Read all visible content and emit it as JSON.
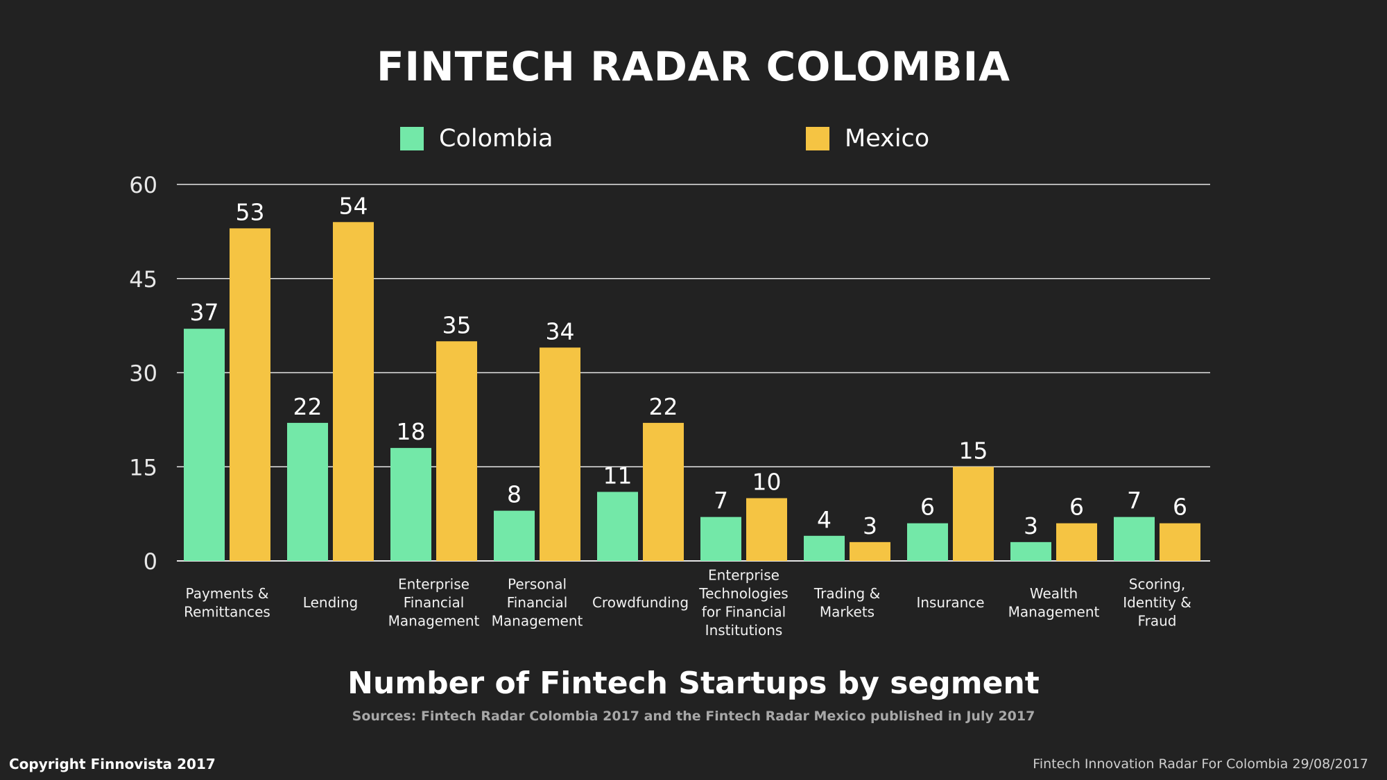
{
  "page": {
    "title": "FINTECH RADAR COLOMBIA",
    "subtitle": "Number  of Fintech Startups by segment",
    "sources": "Sources: Fintech Radar Colombia 2017 and the Fintech Radar Mexico published in July 2017",
    "copyright": "Copyright Finnovista 2017",
    "footer_right": "Fintech Innovation Radar For Colombia 29/08/2017"
  },
  "legend": [
    {
      "name": "Colombia",
      "color": "#73e8a8"
    },
    {
      "name": "Mexico",
      "color": "#f5c443"
    }
  ],
  "chart_data": {
    "type": "bar",
    "title": "FINTECH RADAR COLOMBIA",
    "xlabel": "",
    "ylabel": "",
    "ylim": [
      0,
      60
    ],
    "yticks": [
      "0",
      "15",
      "30",
      "45",
      "60"
    ],
    "grid": true,
    "legend_position": "top-center",
    "categories": [
      [
        "Payments &",
        "Remittances"
      ],
      [
        "Lending"
      ],
      [
        "Enterprise",
        "Financial",
        "Management"
      ],
      [
        "Personal",
        "Financial",
        "Management"
      ],
      [
        "Crowdfunding"
      ],
      [
        "Enterprise",
        "Technologies",
        "for Financial",
        "Institutions"
      ],
      [
        "Trading &",
        "Markets"
      ],
      [
        "Insurance"
      ],
      [
        "Wealth",
        "Management"
      ],
      [
        "Scoring,",
        "Identity &",
        "Fraud"
      ]
    ],
    "series": [
      {
        "name": "Colombia",
        "color": "#73e8a8",
        "values": [
          37,
          22,
          18,
          8,
          11,
          7,
          4,
          6,
          3,
          7
        ]
      },
      {
        "name": "Mexico",
        "color": "#f5c443",
        "values": [
          53,
          54,
          35,
          34,
          22,
          10,
          3,
          15,
          6,
          6
        ]
      }
    ]
  }
}
